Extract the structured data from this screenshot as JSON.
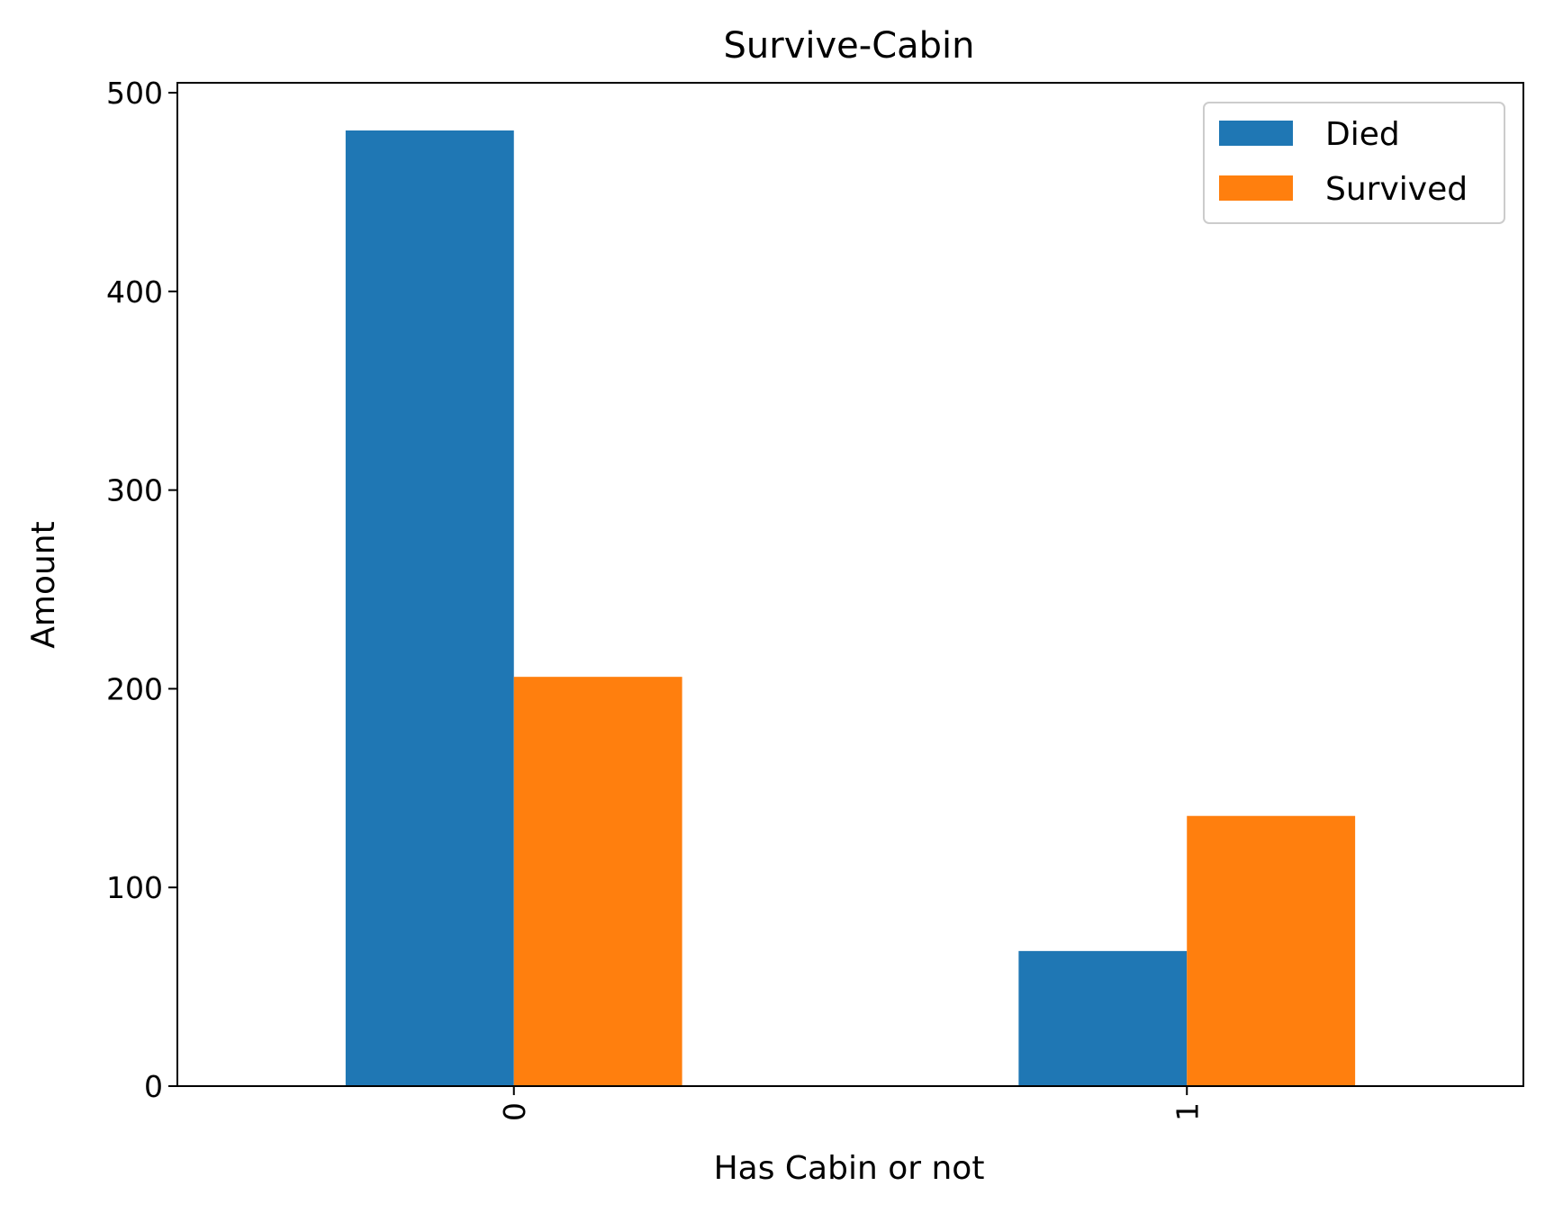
{
  "chart_data": {
    "type": "bar",
    "title": "Survive-Cabin",
    "xlabel": "Has Cabin or not",
    "ylabel": "Amount",
    "categories": [
      "0",
      "1"
    ],
    "series": [
      {
        "name": "Died",
        "values": [
          481,
          68
        ],
        "color": "#1f77b4"
      },
      {
        "name": "Survived",
        "values": [
          206,
          136
        ],
        "color": "#ff7f0e"
      }
    ],
    "ylim": [
      0,
      500
    ],
    "yticks": [
      0,
      100,
      200,
      300,
      400,
      500
    ],
    "ytick_labels": [
      "0",
      "100",
      "200",
      "300",
      "400",
      "500"
    ],
    "xtick_rotation": 90,
    "grid": false,
    "legend_position": "top-right"
  }
}
